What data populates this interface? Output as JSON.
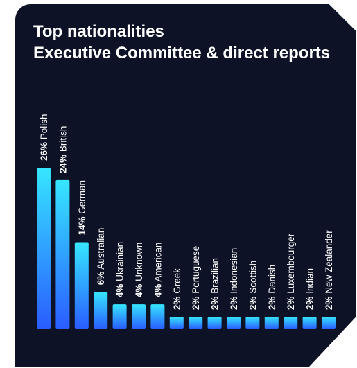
{
  "chart_data": {
    "type": "bar",
    "title": "Top nationalities\nExecutive Committee & direct reports",
    "categories": [
      "Polish",
      "British",
      "German",
      "Australian",
      "Ukrainian",
      "Unknown",
      "American",
      "Greek",
      "Portuguese",
      "Brazilian",
      "Indonesian",
      "Scottish",
      "Danish",
      "Luxembourger",
      "Indian",
      "New Zealander"
    ],
    "values": [
      26,
      24,
      14,
      6,
      4,
      4,
      4,
      2,
      2,
      2,
      2,
      2,
      2,
      2,
      2,
      2
    ],
    "data_labels": [
      "26%",
      "24%",
      "14%",
      "6%",
      "4%",
      "4%",
      "4%",
      "2%",
      "2%",
      "2%",
      "2%",
      "2%",
      "2%",
      "2%",
      "2%",
      "2%"
    ],
    "ylim": [
      0,
      26
    ],
    "grid": false,
    "colors": {
      "background": "#0d1226",
      "bar_top": "#36e6ff",
      "bar_bottom": "#2a5cff",
      "text": "#ffffff"
    }
  }
}
